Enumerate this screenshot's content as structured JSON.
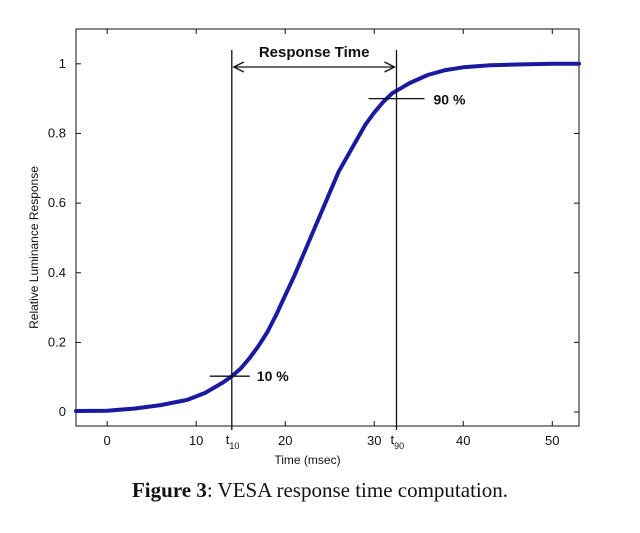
{
  "chart_data": {
    "type": "line",
    "title": "",
    "xlabel": "Time (msec)",
    "ylabel": "Relative Luminance Response",
    "xlim": [
      -3.5,
      53
    ],
    "ylim": [
      -0.04,
      1.1
    ],
    "xticks": [
      0,
      10,
      20,
      30,
      40,
      50
    ],
    "yticks": [
      0,
      0.2,
      0.4,
      0.6,
      0.8,
      1
    ],
    "ytick_labels": [
      "0",
      "0.2",
      "0.4",
      "0.6",
      "0.8",
      "1"
    ],
    "line_color": "#1a1aa0",
    "series": [
      {
        "x": [
          -3.5,
          0,
          3,
          6,
          9,
          11,
          13,
          14,
          15,
          16,
          17,
          18,
          19,
          20,
          21,
          22,
          23,
          24,
          25,
          26,
          27,
          28,
          29,
          30,
          31,
          32,
          33,
          34,
          36,
          38,
          40,
          43,
          46,
          50,
          53
        ],
        "y": [
          0.003,
          0.004,
          0.01,
          0.02,
          0.035,
          0.055,
          0.085,
          0.103,
          0.125,
          0.155,
          0.19,
          0.23,
          0.28,
          0.335,
          0.39,
          0.45,
          0.51,
          0.57,
          0.63,
          0.69,
          0.735,
          0.78,
          0.825,
          0.86,
          0.89,
          0.915,
          0.93,
          0.945,
          0.968,
          0.982,
          0.99,
          0.996,
          0.998,
          1.0,
          1.0
        ]
      }
    ],
    "annotations": {
      "response_time_label": "Response Time",
      "t10_x": 14,
      "t90_x": 32.5,
      "p10_label": "10 %",
      "p10_y": 0.103,
      "p90_label": "90 %",
      "p90_y": 0.9,
      "t10_base": "t",
      "t10_sub": "10",
      "t90_base": "t",
      "t90_sub": "90"
    }
  },
  "caption": {
    "label": "Figure 3",
    "text": ": VESA response time computation."
  }
}
